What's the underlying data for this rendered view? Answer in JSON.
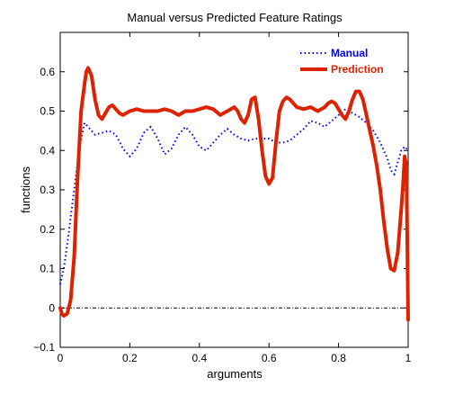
{
  "chart_data": {
    "type": "line",
    "title": "Manual versus Predicted Feature Ratings",
    "xlabel": "arguments",
    "ylabel": "functions",
    "xlim": [
      0,
      1
    ],
    "ylim": [
      -0.1,
      0.7
    ],
    "x_ticks": [
      0,
      0.2,
      0.4,
      0.6,
      0.8,
      1
    ],
    "x_tick_labels": [
      "0",
      "0.2",
      "0.4",
      "0.6",
      "0.8",
      "1"
    ],
    "y_ticks": [
      -0.1,
      0,
      0.1,
      0.2,
      0.3,
      0.4,
      0.5,
      0.6
    ],
    "y_tick_labels": [
      "−0.1",
      "0",
      "0.1",
      "0.2",
      "0.3",
      "0.4",
      "0.5",
      "0.6"
    ],
    "grid": false,
    "legend_position": "top-right",
    "reference_line": {
      "y": 0,
      "style": "dash-dot",
      "color": "#000000"
    },
    "series": [
      {
        "name": "Manual",
        "color": "#0000ff",
        "style": "dotted",
        "x": [
          0,
          0.01,
          0.02,
          0.03,
          0.04,
          0.05,
          0.06,
          0.07,
          0.08,
          0.09,
          0.1,
          0.12,
          0.14,
          0.16,
          0.18,
          0.2,
          0.22,
          0.24,
          0.26,
          0.28,
          0.3,
          0.32,
          0.34,
          0.36,
          0.38,
          0.4,
          0.42,
          0.44,
          0.46,
          0.48,
          0.5,
          0.52,
          0.54,
          0.56,
          0.58,
          0.6,
          0.62,
          0.64,
          0.66,
          0.68,
          0.7,
          0.72,
          0.74,
          0.76,
          0.78,
          0.8,
          0.82,
          0.84,
          0.86,
          0.88,
          0.9,
          0.92,
          0.94,
          0.95,
          0.96,
          0.97,
          0.98,
          0.99,
          1.0
        ],
        "y": [
          0.06,
          0.1,
          0.16,
          0.23,
          0.3,
          0.37,
          0.43,
          0.47,
          0.46,
          0.45,
          0.44,
          0.445,
          0.45,
          0.44,
          0.405,
          0.385,
          0.405,
          0.445,
          0.46,
          0.43,
          0.39,
          0.405,
          0.44,
          0.46,
          0.44,
          0.41,
          0.4,
          0.42,
          0.44,
          0.455,
          0.44,
          0.43,
          0.425,
          0.43,
          0.43,
          0.43,
          0.42,
          0.42,
          0.425,
          0.44,
          0.455,
          0.475,
          0.47,
          0.46,
          0.475,
          0.49,
          0.505,
          0.495,
          0.485,
          0.47,
          0.45,
          0.42,
          0.38,
          0.35,
          0.34,
          0.37,
          0.4,
          0.41,
          0.4
        ]
      },
      {
        "name": "Prediction",
        "color": "#dd2200",
        "style": "solid",
        "x": [
          0,
          0.005,
          0.01,
          0.02,
          0.03,
          0.04,
          0.05,
          0.06,
          0.07,
          0.075,
          0.08,
          0.09,
          0.1,
          0.11,
          0.12,
          0.13,
          0.14,
          0.15,
          0.16,
          0.17,
          0.18,
          0.2,
          0.22,
          0.24,
          0.26,
          0.28,
          0.3,
          0.32,
          0.34,
          0.36,
          0.38,
          0.4,
          0.42,
          0.44,
          0.46,
          0.48,
          0.5,
          0.51,
          0.52,
          0.53,
          0.54,
          0.55,
          0.56,
          0.57,
          0.58,
          0.59,
          0.6,
          0.61,
          0.62,
          0.63,
          0.64,
          0.65,
          0.66,
          0.67,
          0.68,
          0.7,
          0.72,
          0.74,
          0.76,
          0.77,
          0.78,
          0.79,
          0.8,
          0.81,
          0.82,
          0.83,
          0.84,
          0.85,
          0.86,
          0.87,
          0.88,
          0.89,
          0.9,
          0.91,
          0.92,
          0.93,
          0.94,
          0.95,
          0.96,
          0.97,
          0.98,
          0.985,
          0.99,
          0.995,
          1.0
        ],
        "y": [
          0.0,
          -0.015,
          -0.02,
          -0.015,
          0.02,
          0.13,
          0.33,
          0.5,
          0.57,
          0.6,
          0.61,
          0.59,
          0.53,
          0.49,
          0.48,
          0.495,
          0.51,
          0.515,
          0.505,
          0.495,
          0.49,
          0.5,
          0.505,
          0.5,
          0.5,
          0.5,
          0.505,
          0.5,
          0.49,
          0.5,
          0.5,
          0.505,
          0.51,
          0.505,
          0.49,
          0.5,
          0.51,
          0.5,
          0.48,
          0.47,
          0.49,
          0.53,
          0.535,
          0.48,
          0.4,
          0.335,
          0.315,
          0.33,
          0.42,
          0.5,
          0.525,
          0.535,
          0.53,
          0.52,
          0.51,
          0.505,
          0.51,
          0.5,
          0.51,
          0.52,
          0.525,
          0.52,
          0.505,
          0.49,
          0.48,
          0.5,
          0.53,
          0.55,
          0.55,
          0.53,
          0.49,
          0.45,
          0.41,
          0.36,
          0.3,
          0.22,
          0.15,
          0.1,
          0.095,
          0.14,
          0.25,
          0.31,
          0.385,
          0.36,
          -0.03
        ]
      }
    ]
  }
}
